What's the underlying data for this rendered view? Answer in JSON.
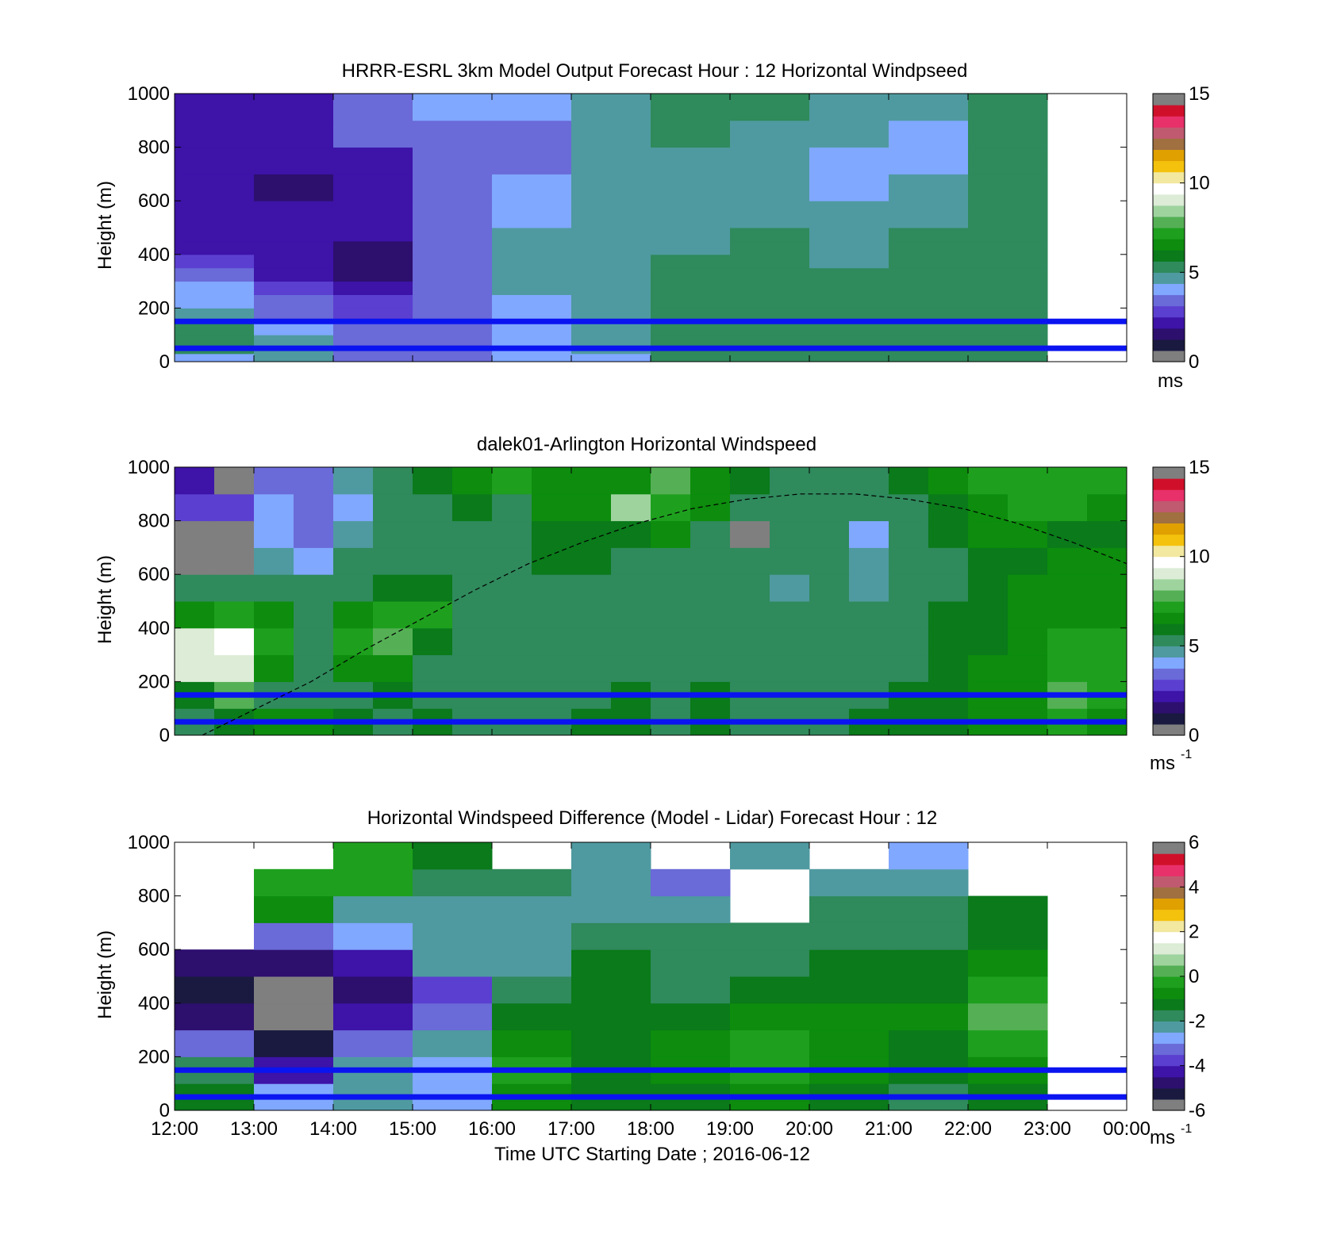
{
  "page": {
    "xlabel": "Time UTC  Starting Date ; 2016-06-12",
    "x_ticks": [
      "12:00",
      "13:00",
      "14:00",
      "15:00",
      "16:00",
      "17:00",
      "18:00",
      "19:00",
      "20:00",
      "21:00",
      "22:00",
      "23:00",
      "00:00"
    ]
  },
  "colormap": [
    "#7f7f7f",
    "#1a1a40",
    "#2d0f6e",
    "#3d13a8",
    "#5b3fd0",
    "#6a6ad8",
    "#80a8ff",
    "#4f9aa0",
    "#2f8a5c",
    "#0a7a1a",
    "#0d8c0d",
    "#1ea01e",
    "#55b055",
    "#9ed39e",
    "#dcecd6",
    "#ffffff",
    "#f2e8a0",
    "#f4c20d",
    "#e0a000",
    "#a07040",
    "#c05a70",
    "#e8306a",
    "#d0102a",
    "#7f7f7f"
  ],
  "chart_data": [
    {
      "type": "heatmap",
      "title": "HRRR-ESRL 3km Model Output   Forecast Hour : 12 Horizontal Windpseed",
      "ylabel": "Height (m)",
      "ylim": [
        0,
        1000
      ],
      "y_ticks": [
        "1000",
        "800",
        "600",
        "400",
        "200",
        "0"
      ],
      "x_ticks": [
        "12:00",
        "13:00",
        "14:00",
        "15:00",
        "16:00",
        "17:00",
        "18:00",
        "19:00",
        "20:00",
        "21:00",
        "22:00",
        "23:00",
        "00:00"
      ],
      "xlim_hours": [
        12,
        24
      ],
      "colorbar": {
        "clim": [
          0,
          15
        ],
        "ticks": [
          "15",
          "10",
          "5",
          "0"
        ],
        "units": "ms"
      },
      "reference_lines_m": [
        150,
        50
      ],
      "time_hours": [
        12,
        13,
        14,
        15,
        16,
        17,
        18,
        19,
        20,
        21,
        22
      ],
      "height_edges_m": [
        0,
        30,
        60,
        100,
        150,
        200,
        250,
        300,
        350,
        400,
        450,
        500,
        600,
        700,
        800,
        900,
        1000
      ],
      "windspeed_ms": [
        [
          4.0,
          4.5,
          3.5,
          3.5,
          4.0,
          4.0,
          5.0,
          5.0,
          5.0,
          5.0,
          5.5
        ],
        [
          5.0,
          4.5,
          3.5,
          3.5,
          4.0,
          4.5,
          5.0,
          5.0,
          5.0,
          5.0,
          5.5
        ],
        [
          5.2,
          4.5,
          3.5,
          3.5,
          4.0,
          4.5,
          5.0,
          5.0,
          5.0,
          5.0,
          5.5
        ],
        [
          5.0,
          4.2,
          3.5,
          3.5,
          4.0,
          4.5,
          5.0,
          5.0,
          5.0,
          5.0,
          5.5
        ],
        [
          4.5,
          3.5,
          2.8,
          3.6,
          4.3,
          4.4,
          5.0,
          5.0,
          5.0,
          5.0,
          5.5
        ],
        [
          4.2,
          3.6,
          2.6,
          3.6,
          4.3,
          4.4,
          5.0,
          5.0,
          5.0,
          5.0,
          5.5
        ],
        [
          4.0,
          2.7,
          2.0,
          3.3,
          4.4,
          4.5,
          5.0,
          5.0,
          5.0,
          5.0,
          5.5
        ],
        [
          3.5,
          2.2,
          1.8,
          3.3,
          4.4,
          4.5,
          5.0,
          5.0,
          5.0,
          5.0,
          5.5
        ],
        [
          3.0,
          2.1,
          1.8,
          3.3,
          4.4,
          4.5,
          5.0,
          5.0,
          4.8,
          5.0,
          5.5
        ],
        [
          2.4,
          2.0,
          1.8,
          3.3,
          4.4,
          4.5,
          4.8,
          5.0,
          4.6,
          5.0,
          5.5
        ],
        [
          2.3,
          2.0,
          1.9,
          3.3,
          4.4,
          4.5,
          4.8,
          5.0,
          4.4,
          5.0,
          5.5
        ],
        [
          2.2,
          1.9,
          2.0,
          3.4,
          4.3,
          4.4,
          4.8,
          4.8,
          4.4,
          4.8,
          5.4
        ],
        [
          2.2,
          1.8,
          2.0,
          3.4,
          4.1,
          4.4,
          4.6,
          4.6,
          4.3,
          4.5,
          5.3
        ],
        [
          2.0,
          1.9,
          2.3,
          3.3,
          3.5,
          4.4,
          4.8,
          4.6,
          4.3,
          4.3,
          5.1
        ],
        [
          2.1,
          2.2,
          3.3,
          3.4,
          3.5,
          4.4,
          5.0,
          4.8,
          4.6,
          4.2,
          5.1
        ],
        [
          2.4,
          2.4,
          3.6,
          4.0,
          4.0,
          4.8,
          5.0,
          5.0,
          4.8,
          4.4,
          5.1
        ]
      ]
    },
    {
      "type": "heatmap",
      "title": "dalek01-Arlington  Horizontal Windspeed",
      "ylabel": "Height (m)",
      "ylim": [
        0,
        1000
      ],
      "y_ticks": [
        "1000",
        "800",
        "600",
        "400",
        "200",
        "0"
      ],
      "xlim_hours": [
        12,
        24
      ],
      "colorbar": {
        "clim": [
          0,
          15
        ],
        "ticks": [
          "15",
          "10",
          "5",
          "0"
        ],
        "units": "ms",
        "units_exponent": "-1"
      },
      "reference_lines_m": [
        150,
        50
      ],
      "time_hours": [
        12.0,
        12.5,
        13.0,
        13.5,
        14.0,
        14.5,
        15.0,
        15.5,
        16.0,
        16.5,
        17.0,
        17.5,
        18.0,
        18.5,
        19.0,
        19.5,
        20.0,
        20.5,
        21.0,
        21.5,
        22.0,
        22.5,
        23.0,
        23.5
      ],
      "height_edges_m": [
        0,
        100,
        200,
        300,
        400,
        500,
        600,
        700,
        800,
        900,
        1000
      ],
      "windspeed_ms": [
        [
          5.0,
          6.0,
          6.5,
          6.5,
          6.0,
          5.5,
          6.0,
          5.0,
          5.0,
          5.5,
          6.0,
          6.0,
          5.5,
          6.0,
          5.0,
          5.5,
          5.5,
          6.0,
          6.0,
          6.0,
          6.5,
          6.5,
          7.0,
          6.5
        ],
        [
          6.0,
          7.5,
          5.0,
          5.5,
          5.5,
          6.0,
          5.5,
          5.0,
          5.0,
          5.5,
          5.5,
          6.0,
          5.5,
          6.0,
          5.5,
          5.5,
          5.0,
          5.5,
          6.0,
          6.0,
          6.5,
          6.5,
          7.5,
          7.0
        ],
        [
          9.0,
          9.0,
          6.5,
          5.5,
          6.5,
          6.5,
          5.5,
          5.5,
          5.0,
          5.0,
          5.5,
          5.5,
          5.0,
          5.5,
          5.5,
          5.0,
          5.0,
          5.5,
          5.5,
          6.0,
          6.5,
          6.5,
          7.0,
          7.0
        ],
        [
          9.0,
          9.5,
          7.0,
          5.5,
          7.0,
          8.0,
          6.0,
          5.5,
          5.5,
          5.5,
          5.5,
          5.5,
          5.0,
          5.0,
          5.5,
          5.0,
          5.0,
          5.0,
          5.5,
          6.0,
          6.0,
          6.5,
          7.0,
          7.0
        ],
        [
          6.5,
          7.0,
          6.5,
          5.5,
          6.5,
          7.0,
          7.0,
          5.5,
          5.5,
          5.5,
          5.5,
          5.0,
          5.0,
          5.0,
          5.5,
          5.0,
          5.0,
          5.0,
          5.5,
          6.0,
          6.0,
          6.5,
          6.5,
          6.5
        ],
        [
          5.0,
          5.5,
          5.0,
          5.0,
          5.5,
          6.0,
          6.0,
          5.0,
          5.0,
          5.5,
          5.5,
          5.0,
          5.0,
          5.0,
          5.5,
          4.5,
          5.0,
          4.5,
          5.0,
          5.5,
          6.0,
          6.5,
          6.5,
          6.5
        ],
        [
          0.0,
          0.0,
          4.5,
          4.0,
          5.5,
          5.0,
          5.5,
          5.0,
          5.0,
          6.0,
          6.0,
          5.5,
          5.0,
          5.5,
          5.5,
          5.5,
          5.0,
          4.5,
          5.0,
          5.5,
          6.0,
          6.0,
          6.5,
          6.5
        ],
        [
          0.0,
          0.0,
          4.0,
          3.5,
          4.5,
          5.0,
          5.5,
          5.5,
          5.0,
          6.0,
          6.0,
          6.0,
          6.5,
          5.5,
          0.0,
          5.5,
          5.0,
          4.0,
          5.0,
          6.0,
          6.5,
          6.5,
          6.0,
          6.0
        ],
        [
          2.5,
          2.5,
          4.0,
          3.5,
          4.0,
          5.0,
          5.5,
          6.0,
          5.5,
          6.5,
          6.5,
          8.5,
          7.0,
          6.5,
          5.5,
          5.0,
          5.0,
          5.0,
          5.5,
          6.0,
          6.5,
          7.0,
          7.0,
          6.5
        ],
        [
          2.0,
          0.0,
          3.5,
          3.5,
          4.5,
          5.0,
          6.0,
          6.5,
          7.0,
          6.5,
          6.5,
          6.5,
          7.5,
          6.5,
          6.0,
          5.5,
          5.5,
          5.0,
          6.0,
          6.5,
          7.0,
          7.0,
          7.0,
          7.0
        ]
      ],
      "overlay_curve_m": [
        0,
        100,
        200,
        320,
        430,
        540,
        640,
        720,
        790,
        845,
        880,
        900,
        900,
        880,
        845,
        790,
        720,
        640
      ]
    },
    {
      "type": "heatmap",
      "title": "Horizontal Windspeed Difference (Model - Lidar) Forecast Hour : 12",
      "ylabel": "Height (m)",
      "ylim": [
        0,
        1000
      ],
      "y_ticks": [
        "1000",
        "800",
        "600",
        "400",
        "200",
        "0"
      ],
      "xlim_hours": [
        12,
        24
      ],
      "colorbar": {
        "clim": [
          -6,
          6
        ],
        "ticks": [
          "6",
          "4",
          "2",
          "0",
          "-2",
          "-4",
          "-6"
        ],
        "units": "ms",
        "units_exponent": "-1"
      },
      "reference_lines_m": [
        150,
        50
      ],
      "time_hours": [
        12,
        13,
        14,
        15,
        16,
        17,
        18,
        19,
        20,
        21,
        22
      ],
      "height_edges_m": [
        0,
        100,
        200,
        300,
        400,
        500,
        600,
        700,
        800,
        900,
        1000
      ],
      "difference_ms": [
        [
          -1.5,
          -3.0,
          -2.5,
          -3.0,
          -1.0,
          -1.5,
          -1.5,
          -1.0,
          -1.5,
          -2.0,
          -1.5
        ],
        [
          -2.0,
          -4.5,
          -2.5,
          -3.0,
          -0.5,
          -1.5,
          -1.0,
          -0.5,
          -1.0,
          -1.5,
          -1.0
        ],
        [
          -3.5,
          -5.5,
          -3.5,
          -2.5,
          -1.0,
          -1.5,
          -1.0,
          -0.5,
          -1.0,
          -1.5,
          -0.5
        ],
        [
          -5.0,
          -6.0,
          -4.5,
          -3.5,
          -1.5,
          -1.5,
          -1.5,
          -1.0,
          -1.0,
          -1.0,
          0.0
        ],
        [
          -5.5,
          -6.0,
          -5.0,
          -4.0,
          -2.0,
          -1.5,
          -2.0,
          -1.5,
          -1.5,
          -1.5,
          -0.5
        ],
        [
          -5.0,
          -5.0,
          -4.5,
          -2.5,
          -2.5,
          -1.5,
          -2.0,
          -2.0,
          -1.5,
          -1.5,
          -1.0
        ],
        [
          null,
          -3.5,
          -3.0,
          -2.5,
          -2.5,
          -2.0,
          -2.0,
          -2.0,
          -2.0,
          -2.0,
          -1.5
        ],
        [
          null,
          -1.0,
          -2.5,
          -2.5,
          -2.5,
          -2.5,
          -2.5,
          null,
          -2.0,
          -2.0,
          -1.5
        ],
        [
          null,
          -0.5,
          -0.5,
          -2.0,
          -2.0,
          -2.5,
          -3.5,
          null,
          -2.5,
          -2.5,
          null
        ],
        [
          null,
          null,
          -0.5,
          -1.5,
          null,
          -2.5,
          null,
          -2.5,
          null,
          -3.0,
          null
        ]
      ]
    }
  ]
}
